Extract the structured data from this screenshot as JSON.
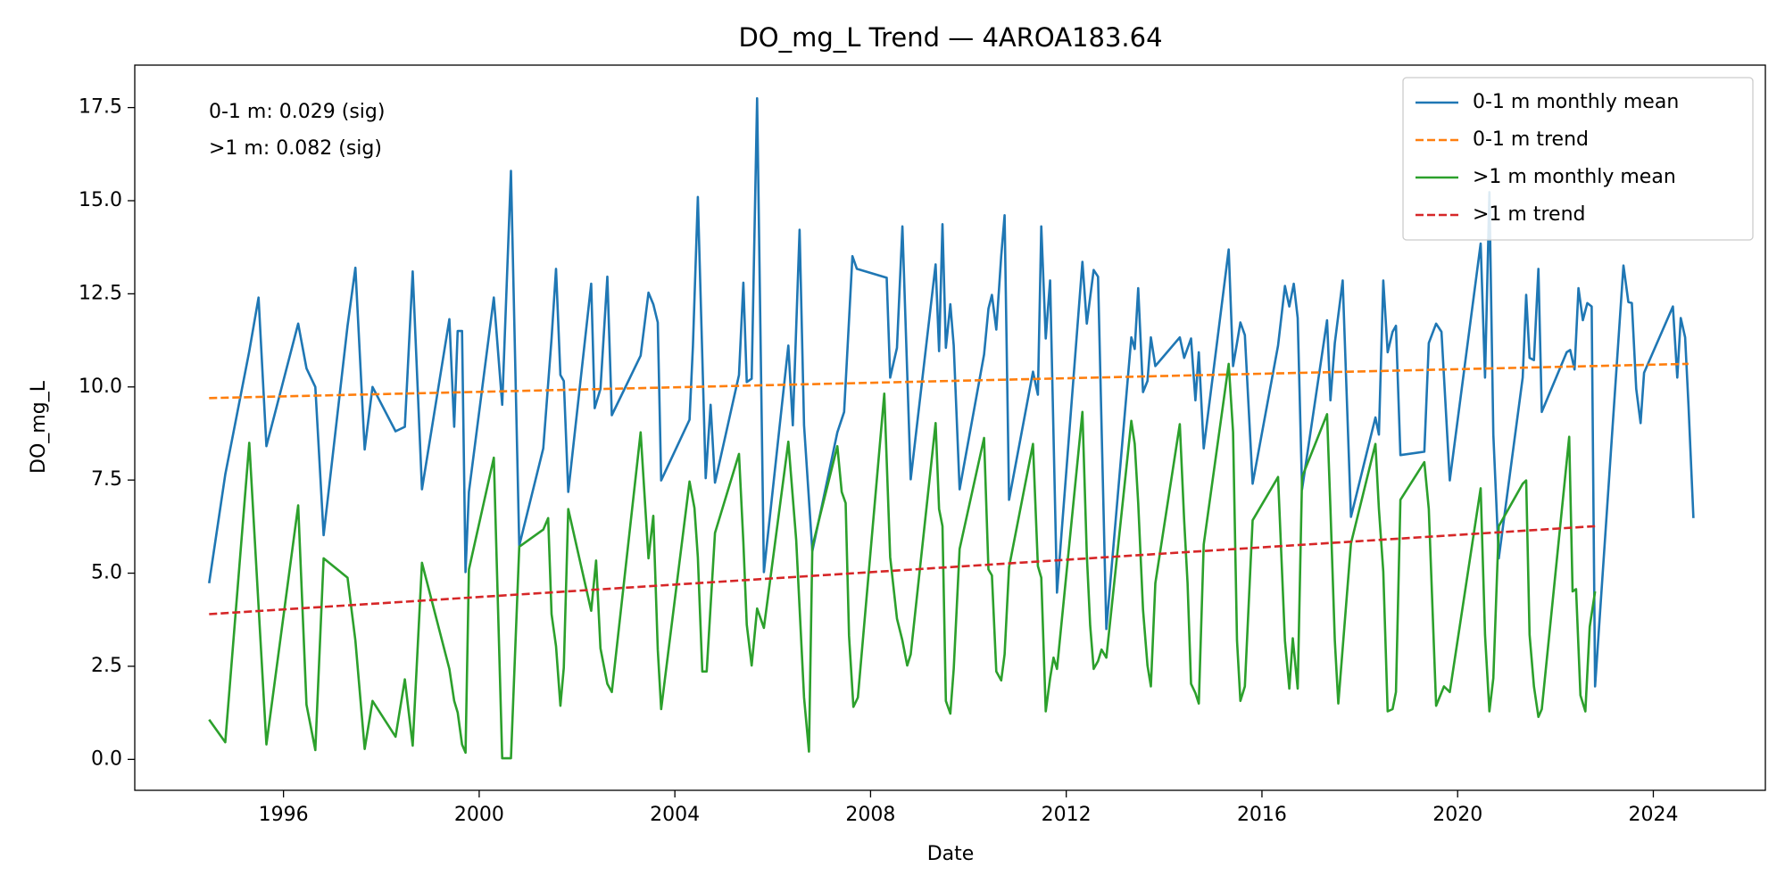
{
  "chart_data": {
    "type": "line",
    "title": "DO_mg_L Trend — 4AROA183.64",
    "x_label": "Date",
    "y_label": "DO_mg_L",
    "annotations": [
      "0-1 m: 0.029 (sig)",
      ">1 m: 0.082 (sig)"
    ],
    "legend": "upper right",
    "grid": false,
    "xlim": [
      1992.96,
      2026.29
    ],
    "ylim": [
      -0.83,
      18.64
    ],
    "xticks": [
      1996,
      2000,
      2004,
      2008,
      2012,
      2016,
      2020,
      2024
    ],
    "yticks": [
      {
        "value": 0,
        "label": "0.0"
      },
      {
        "value": 2.5,
        "label": "2.5"
      },
      {
        "value": 5,
        "label": "5.0"
      },
      {
        "value": 7.5,
        "label": "7.5"
      },
      {
        "value": 10,
        "label": "10.0"
      },
      {
        "value": 12.5,
        "label": "12.5"
      },
      {
        "value": 15,
        "label": "15.0"
      },
      {
        "value": 17.5,
        "label": "17.5"
      }
    ],
    "series": [
      {
        "name": "0-1 m monthly mean",
        "color": "#1f77b4",
        "linestyle": "solid",
        "x": [
          1994.48,
          1994.81,
          1995.3,
          1995.49,
          1995.65,
          1996.3,
          1996.47,
          1996.65,
          1996.82,
          1997.31,
          1997.47,
          1997.66,
          1997.82,
          1998.29,
          1998.48,
          1998.64,
          1998.83,
          1999.39,
          1999.49,
          1999.56,
          1999.65,
          1999.72,
          1999.79,
          2000.3,
          2000.47,
          2000.65,
          2000.82,
          2001.31,
          2001.48,
          2001.57,
          2001.66,
          2001.73,
          2001.82,
          2002.29,
          2002.36,
          2002.48,
          2002.62,
          2002.71,
          2003.3,
          2003.46,
          2003.56,
          2003.65,
          2003.72,
          2004.3,
          2004.37,
          2004.47,
          2004.63,
          2004.73,
          2004.82,
          2005.31,
          2005.4,
          2005.47,
          2005.57,
          2005.68,
          2005.82,
          2006.32,
          2006.41,
          2006.55,
          2006.64,
          2006.81,
          2007.32,
          2007.46,
          2007.63,
          2007.72,
          2008.33,
          2008.4,
          2008.54,
          2008.65,
          2008.82,
          2009.33,
          2009.4,
          2009.47,
          2009.54,
          2009.63,
          2009.7,
          2009.82,
          2010.32,
          2010.41,
          2010.48,
          2010.57,
          2010.67,
          2010.74,
          2010.83,
          2011.32,
          2011.42,
          2011.49,
          2011.58,
          2011.67,
          2011.81,
          2012.33,
          2012.42,
          2012.56,
          2012.65,
          2012.82,
          2013.33,
          2013.4,
          2013.47,
          2013.57,
          2013.66,
          2013.73,
          2013.82,
          2014.32,
          2014.41,
          2014.55,
          2014.64,
          2014.71,
          2014.81,
          2015.32,
          2015.41,
          2015.49,
          2015.56,
          2015.65,
          2015.81,
          2016.33,
          2016.47,
          2016.56,
          2016.65,
          2016.73,
          2016.82,
          2017.33,
          2017.4,
          2017.49,
          2017.65,
          2017.82,
          2018.32,
          2018.39,
          2018.48,
          2018.57,
          2018.67,
          2018.74,
          2018.83,
          2019.32,
          2019.41,
          2019.56,
          2019.67,
          2019.84,
          2020.47,
          2020.56,
          2020.65,
          2020.73,
          2020.84,
          2021.33,
          2021.4,
          2021.47,
          2021.56,
          2021.65,
          2021.72,
          2022.23,
          2022.3,
          2022.39,
          2022.47,
          2022.56,
          2022.65,
          2022.74,
          2022.81,
          2023.39,
          2023.49,
          2023.56,
          2023.65,
          2023.74,
          2023.81,
          2024.4,
          2024.49,
          2024.56,
          2024.65,
          2024.72,
          2024.82
        ],
        "values": [
          4.73,
          7.65,
          10.96,
          12.4,
          8.41,
          11.7,
          10.5,
          10.0,
          6.02,
          11.64,
          13.2,
          8.32,
          10.0,
          8.81,
          8.93,
          13.1,
          7.25,
          11.82,
          8.93,
          11.5,
          11.5,
          5.03,
          7.18,
          12.4,
          9.52,
          15.8,
          5.74,
          8.35,
          11.3,
          13.17,
          10.32,
          10.16,
          7.18,
          12.77,
          9.43,
          9.95,
          12.96,
          9.24,
          10.84,
          12.53,
          12.22,
          11.73,
          7.49,
          9.12,
          11.11,
          15.1,
          7.55,
          9.52,
          7.43,
          10.32,
          12.8,
          10.13,
          10.22,
          17.75,
          5.03,
          11.11,
          8.97,
          14.22,
          8.97,
          5.59,
          8.78,
          9.33,
          13.51,
          13.17,
          12.93,
          10.25,
          11.05,
          14.31,
          7.52,
          13.29,
          10.96,
          14.37,
          11.05,
          12.22,
          11.11,
          7.25,
          10.87,
          12.1,
          12.47,
          11.54,
          13.51,
          14.61,
          6.97,
          10.41,
          9.79,
          14.31,
          11.3,
          12.86,
          4.48,
          13.36,
          11.7,
          13.14,
          12.96,
          3.5,
          11.33,
          11.02,
          12.65,
          9.86,
          10.16,
          11.33,
          10.56,
          11.33,
          10.78,
          11.3,
          9.64,
          10.93,
          8.35,
          13.69,
          10.56,
          11.18,
          11.73,
          11.39,
          7.4,
          11.11,
          12.71,
          12.16,
          12.77,
          11.85,
          7.25,
          11.79,
          9.64,
          11.18,
          12.86,
          6.51,
          9.18,
          8.72,
          12.86,
          10.93,
          11.48,
          11.64,
          8.17,
          8.26,
          11.18,
          11.7,
          11.48,
          7.49,
          13.85,
          10.25,
          15.23,
          8.72,
          5.4,
          10.25,
          12.47,
          10.78,
          10.72,
          13.17,
          9.33,
          10.93,
          10.99,
          10.47,
          12.65,
          11.79,
          12.25,
          12.16,
          1.96,
          13.26,
          12.28,
          12.25,
          9.95,
          9.03,
          10.38,
          12.16,
          10.25,
          11.85,
          11.33,
          9.49,
          6.48
        ]
      },
      {
        "name": "0-1 m trend",
        "color": "#ff7f0e",
        "linestyle": "dashed",
        "x": [
          1994.48,
          2024.72
        ],
        "values": [
          9.7,
          10.62
        ]
      },
      {
        "name": ">1 m monthly mean",
        "color": "#2ca02c",
        "linestyle": "solid",
        "x": [
          1994.48,
          1994.81,
          1995.3,
          1995.65,
          1996.3,
          1996.47,
          1996.65,
          1996.82,
          1997.31,
          1997.47,
          1997.66,
          1997.82,
          1998.29,
          1998.48,
          1998.64,
          1998.83,
          1999.39,
          1999.49,
          1999.56,
          1999.65,
          1999.72,
          1999.79,
          2000.3,
          2000.47,
          2000.65,
          2000.82,
          2001.31,
          2001.41,
          2001.48,
          2001.57,
          2001.66,
          2001.73,
          2001.82,
          2002.29,
          2002.39,
          2002.48,
          2002.62,
          2002.71,
          2003.3,
          2003.46,
          2003.56,
          2003.65,
          2003.72,
          2004.3,
          2004.4,
          2004.47,
          2004.56,
          2004.65,
          2004.82,
          2005.31,
          2005.4,
          2005.47,
          2005.57,
          2005.68,
          2005.82,
          2006.32,
          2006.48,
          2006.64,
          2006.74,
          2006.81,
          2007.32,
          2007.41,
          2007.49,
          2007.56,
          2007.65,
          2007.74,
          2008.28,
          2008.4,
          2008.54,
          2008.65,
          2008.75,
          2008.82,
          2009.33,
          2009.4,
          2009.47,
          2009.54,
          2009.63,
          2009.7,
          2009.82,
          2010.32,
          2010.41,
          2010.48,
          2010.57,
          2010.67,
          2010.74,
          2010.83,
          2011.32,
          2011.42,
          2011.49,
          2011.58,
          2011.67,
          2011.74,
          2011.81,
          2012.33,
          2012.42,
          2012.49,
          2012.56,
          2012.65,
          2012.72,
          2012.82,
          2013.33,
          2013.4,
          2013.47,
          2013.57,
          2013.66,
          2013.73,
          2013.82,
          2014.32,
          2014.41,
          2014.48,
          2014.55,
          2014.64,
          2014.71,
          2014.81,
          2015.32,
          2015.41,
          2015.49,
          2015.56,
          2015.65,
          2015.81,
          2016.33,
          2016.47,
          2016.56,
          2016.63,
          2016.73,
          2016.82,
          2017.33,
          2017.4,
          2017.49,
          2017.56,
          2017.82,
          2018.32,
          2018.39,
          2018.48,
          2018.57,
          2018.67,
          2018.74,
          2018.83,
          2019.32,
          2019.41,
          2019.56,
          2019.72,
          2019.84,
          2020.47,
          2020.56,
          2020.65,
          2020.73,
          2020.84,
          2021.33,
          2021.4,
          2021.47,
          2021.56,
          2021.65,
          2021.72,
          2022.28,
          2022.35,
          2022.42,
          2022.51,
          2022.61,
          2022.7,
          2022.81
        ],
        "values": [
          1.07,
          0.46,
          8.5,
          0.4,
          6.82,
          1.47,
          0.25,
          5.4,
          4.88,
          3.19,
          0.28,
          1.57,
          0.61,
          2.15,
          0.37,
          5.28,
          2.43,
          1.57,
          1.26,
          0.4,
          0.18,
          5.1,
          8.1,
          0.03,
          0.03,
          5.71,
          6.17,
          6.48,
          3.9,
          3.04,
          1.44,
          2.46,
          6.72,
          3.99,
          5.34,
          2.98,
          2.03,
          1.81,
          8.78,
          5.4,
          6.54,
          2.95,
          1.35,
          7.46,
          6.75,
          5.43,
          2.36,
          2.36,
          6.08,
          8.2,
          5.83,
          3.62,
          2.52,
          4.05,
          3.53,
          8.53,
          5.89,
          1.66,
          0.21,
          5.71,
          8.41,
          7.18,
          6.88,
          3.32,
          1.41,
          1.66,
          9.82,
          5.43,
          3.78,
          3.19,
          2.52,
          2.82,
          9.03,
          6.72,
          6.26,
          1.57,
          1.23,
          2.43,
          5.65,
          8.63,
          5.1,
          4.94,
          2.36,
          2.12,
          2.82,
          5.16,
          8.47,
          5.19,
          4.88,
          1.29,
          2.18,
          2.73,
          2.43,
          9.33,
          5.5,
          3.59,
          2.43,
          2.64,
          2.95,
          2.73,
          9.09,
          8.47,
          6.88,
          4.02,
          2.52,
          1.96,
          4.73,
          9.0,
          6.42,
          4.73,
          2.03,
          1.78,
          1.5,
          5.77,
          10.62,
          8.78,
          3.19,
          1.57,
          1.96,
          6.42,
          7.58,
          3.19,
          1.9,
          3.25,
          1.9,
          7.58,
          9.27,
          6.72,
          3.19,
          1.5,
          5.8,
          8.47,
          6.72,
          5.04,
          1.29,
          1.35,
          1.81,
          6.97,
          7.98,
          6.72,
          1.44,
          1.96,
          1.81,
          7.28,
          3.35,
          1.29,
          2.18,
          6.26,
          7.4,
          7.49,
          3.35,
          1.96,
          1.14,
          1.35,
          8.66,
          4.51,
          4.57,
          1.72,
          1.29,
          3.56,
          4.51
        ]
      },
      {
        "name": ">1 m trend",
        "color": "#d62728",
        "linestyle": "dashed",
        "x": [
          1994.48,
          2022.81
        ],
        "values": [
          3.9,
          6.26
        ]
      }
    ]
  }
}
